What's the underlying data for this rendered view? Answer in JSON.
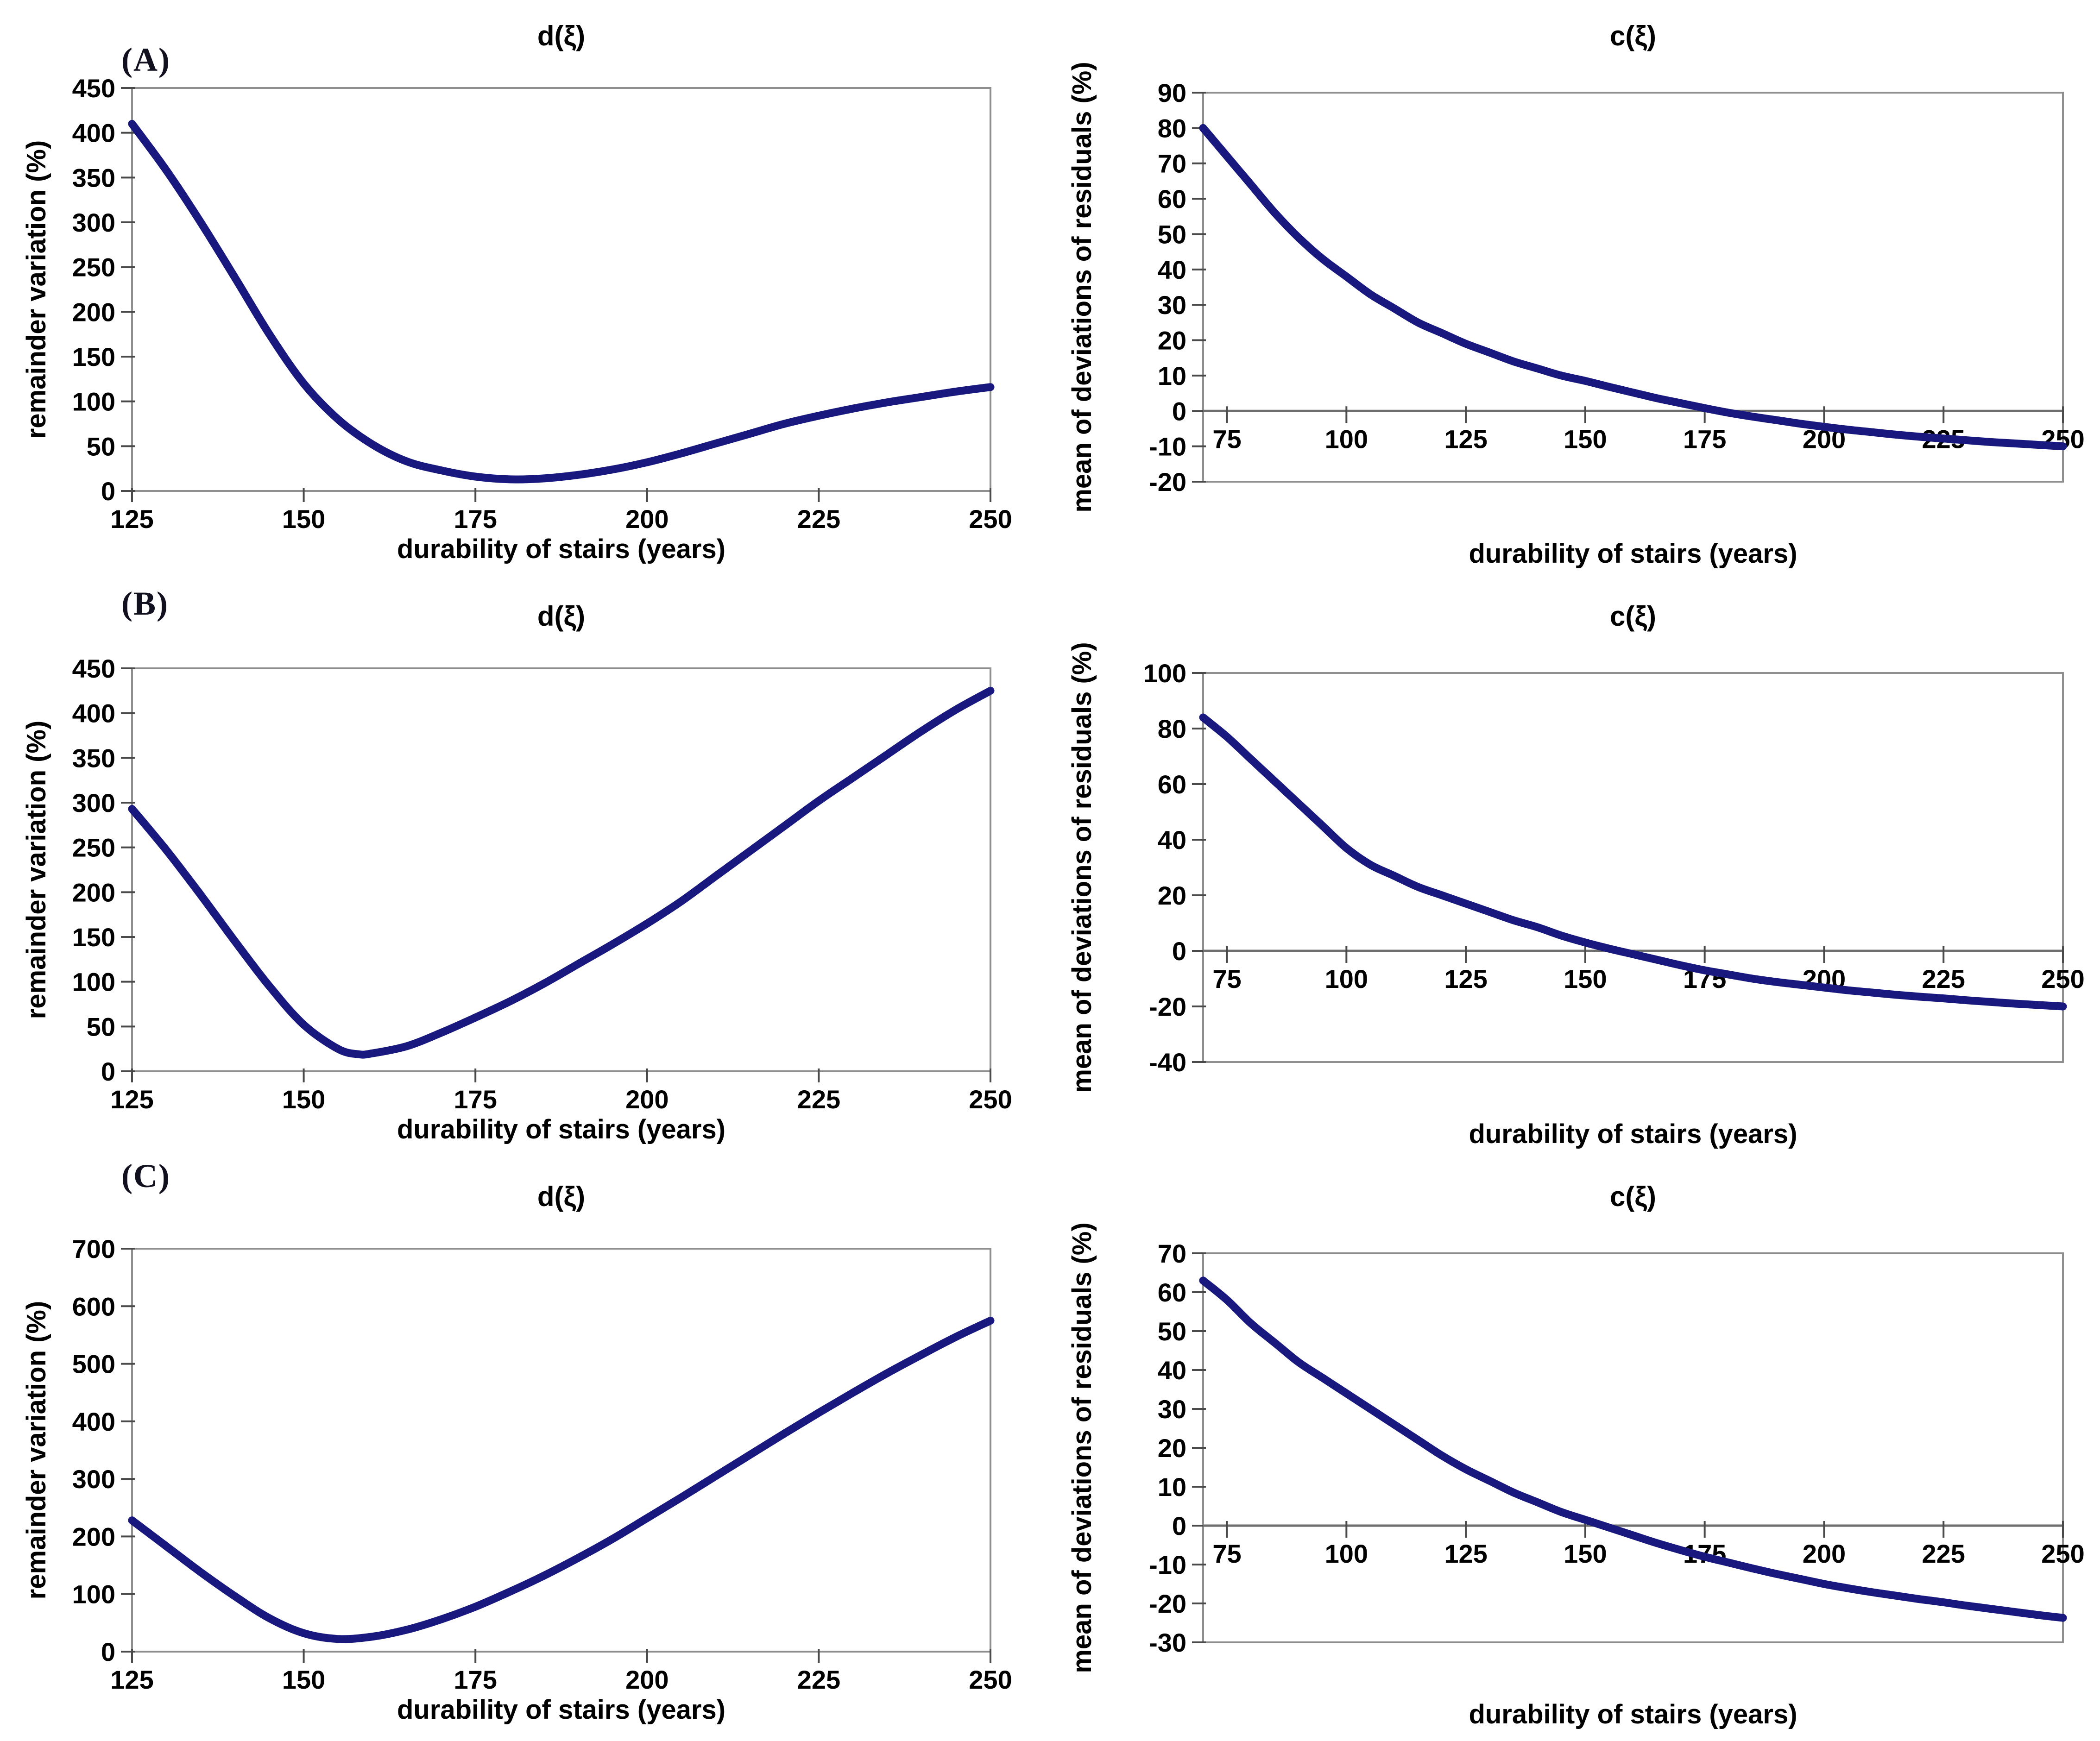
{
  "figure": {
    "background": "#ffffff",
    "line_color": "#18187f",
    "frame_color": "#8f8f8f",
    "zero_line_color": "#6e6e6e",
    "tick_color": "#4a4a4a",
    "text_color": "#000000",
    "panel_label_color": "#10101e"
  },
  "chart_data": [
    {
      "id": "a-d-xi",
      "panel_label": "(A)",
      "type": "line",
      "title": "d(ξ)",
      "xlabel": "durability of stairs (years)",
      "ylabel": "remainder variation (%)",
      "xlim": [
        125,
        250
      ],
      "ylim": [
        0,
        450
      ],
      "xticks": [
        125,
        150,
        175,
        200,
        225,
        250
      ],
      "yticks": [
        0,
        50,
        100,
        150,
        200,
        250,
        300,
        350,
        400,
        450
      ],
      "x_axis_mode": "bottom",
      "grid": false,
      "legend": null,
      "points": [
        [
          125,
          410
        ],
        [
          130,
          358
        ],
        [
          135,
          300
        ],
        [
          140,
          238
        ],
        [
          145,
          175
        ],
        [
          150,
          120
        ],
        [
          155,
          80
        ],
        [
          160,
          52
        ],
        [
          165,
          33
        ],
        [
          170,
          23
        ],
        [
          175,
          16
        ],
        [
          180,
          13
        ],
        [
          185,
          14
        ],
        [
          190,
          18
        ],
        [
          195,
          24
        ],
        [
          200,
          32
        ],
        [
          205,
          42
        ],
        [
          210,
          53
        ],
        [
          215,
          64
        ],
        [
          220,
          75
        ],
        [
          225,
          84
        ],
        [
          230,
          92
        ],
        [
          235,
          99
        ],
        [
          240,
          105
        ],
        [
          245,
          111
        ],
        [
          250,
          116
        ]
      ]
    },
    {
      "id": "a-c-xi",
      "panel_label": "",
      "type": "line",
      "title": "c(ξ)",
      "xlabel": "durability of stairs (years)",
      "ylabel": "mean of deviations of residuals (%)",
      "xlim": [
        70,
        250
      ],
      "ylim": [
        -20,
        90
      ],
      "xticks": [
        75,
        100,
        125,
        150,
        175,
        200,
        225,
        250
      ],
      "yticks": [
        -20,
        -10,
        0,
        10,
        20,
        30,
        40,
        50,
        60,
        70,
        80,
        90
      ],
      "x_axis_mode": "zero",
      "grid": false,
      "legend": null,
      "points": [
        [
          70,
          80
        ],
        [
          75,
          72
        ],
        [
          80,
          64
        ],
        [
          85,
          56
        ],
        [
          90,
          49
        ],
        [
          95,
          43
        ],
        [
          100,
          38
        ],
        [
          105,
          33
        ],
        [
          110,
          29
        ],
        [
          115,
          25
        ],
        [
          120,
          22
        ],
        [
          125,
          19
        ],
        [
          130,
          16.5
        ],
        [
          135,
          14
        ],
        [
          140,
          12
        ],
        [
          145,
          10
        ],
        [
          150,
          8.5
        ],
        [
          155,
          6.8
        ],
        [
          160,
          5.2
        ],
        [
          165,
          3.6
        ],
        [
          170,
          2.2
        ],
        [
          175,
          0.8
        ],
        [
          180,
          -0.5
        ],
        [
          185,
          -1.6
        ],
        [
          190,
          -2.6
        ],
        [
          195,
          -3.6
        ],
        [
          200,
          -4.5
        ],
        [
          205,
          -5.3
        ],
        [
          210,
          -6
        ],
        [
          215,
          -6.7
        ],
        [
          220,
          -7.3
        ],
        [
          225,
          -7.8
        ],
        [
          230,
          -8.3
        ],
        [
          235,
          -8.8
        ],
        [
          240,
          -9.2
        ],
        [
          245,
          -9.6
        ],
        [
          250,
          -10
        ]
      ]
    },
    {
      "id": "b-d-xi",
      "panel_label": "(B)",
      "type": "line",
      "title": "d(ξ)",
      "xlabel": "durability of stairs (years)",
      "ylabel": "remainder variation (%)",
      "xlim": [
        125,
        250
      ],
      "ylim": [
        0,
        450
      ],
      "xticks": [
        125,
        150,
        175,
        200,
        225,
        250
      ],
      "yticks": [
        0,
        50,
        100,
        150,
        200,
        250,
        300,
        350,
        400,
        450
      ],
      "x_axis_mode": "bottom",
      "grid": false,
      "legend": null,
      "points": [
        [
          125,
          293
        ],
        [
          130,
          247
        ],
        [
          135,
          197
        ],
        [
          140,
          145
        ],
        [
          145,
          95
        ],
        [
          150,
          52
        ],
        [
          155,
          25
        ],
        [
          158,
          19
        ],
        [
          160,
          20
        ],
        [
          165,
          28
        ],
        [
          170,
          43
        ],
        [
          175,
          60
        ],
        [
          180,
          78
        ],
        [
          185,
          98
        ],
        [
          190,
          120
        ],
        [
          195,
          142
        ],
        [
          200,
          165
        ],
        [
          205,
          190
        ],
        [
          210,
          218
        ],
        [
          215,
          246
        ],
        [
          220,
          274
        ],
        [
          225,
          302
        ],
        [
          230,
          328
        ],
        [
          235,
          354
        ],
        [
          240,
          380
        ],
        [
          245,
          404
        ],
        [
          250,
          425
        ]
      ]
    },
    {
      "id": "b-c-xi",
      "panel_label": "",
      "type": "line",
      "title": "c(ξ)",
      "xlabel": "durability of stairs (years)",
      "ylabel": "mean of deviations of residuals (%)",
      "xlim": [
        70,
        250
      ],
      "ylim": [
        -40,
        100
      ],
      "xticks": [
        75,
        100,
        125,
        150,
        175,
        200,
        225,
        250
      ],
      "yticks": [
        -40,
        -20,
        0,
        20,
        40,
        60,
        80,
        100
      ],
      "x_axis_mode": "zero",
      "grid": false,
      "legend": null,
      "points": [
        [
          70,
          84
        ],
        [
          75,
          77
        ],
        [
          80,
          69
        ],
        [
          85,
          61
        ],
        [
          90,
          53
        ],
        [
          95,
          45
        ],
        [
          100,
          37
        ],
        [
          105,
          31
        ],
        [
          110,
          27
        ],
        [
          115,
          23
        ],
        [
          120,
          20
        ],
        [
          125,
          17
        ],
        [
          130,
          14
        ],
        [
          135,
          11
        ],
        [
          140,
          8.5
        ],
        [
          145,
          5.5
        ],
        [
          150,
          3
        ],
        [
          155,
          0.8
        ],
        [
          160,
          -1.2
        ],
        [
          165,
          -3.2
        ],
        [
          170,
          -5.2
        ],
        [
          175,
          -7
        ],
        [
          180,
          -8.5
        ],
        [
          185,
          -10
        ],
        [
          190,
          -11.2
        ],
        [
          195,
          -12.2
        ],
        [
          200,
          -13.2
        ],
        [
          205,
          -14.2
        ],
        [
          210,
          -15
        ],
        [
          215,
          -15.8
        ],
        [
          220,
          -16.5
        ],
        [
          225,
          -17.1
        ],
        [
          230,
          -17.8
        ],
        [
          235,
          -18.4
        ],
        [
          240,
          -19
        ],
        [
          245,
          -19.5
        ],
        [
          250,
          -20
        ]
      ]
    },
    {
      "id": "c-d-xi",
      "panel_label": "(C)",
      "type": "line",
      "title": "d(ξ)",
      "xlabel": "durability of stairs (years)",
      "ylabel": "remainder variation (%)",
      "xlim": [
        125,
        250
      ],
      "ylim": [
        0,
        700
      ],
      "xticks": [
        125,
        150,
        175,
        200,
        225,
        250
      ],
      "yticks": [
        0,
        100,
        200,
        300,
        400,
        500,
        600,
        700
      ],
      "x_axis_mode": "bottom",
      "grid": false,
      "legend": null,
      "points": [
        [
          125,
          228
        ],
        [
          130,
          183
        ],
        [
          135,
          138
        ],
        [
          140,
          96
        ],
        [
          145,
          58
        ],
        [
          150,
          32
        ],
        [
          155,
          22
        ],
        [
          160,
          26
        ],
        [
          165,
          38
        ],
        [
          170,
          56
        ],
        [
          175,
          78
        ],
        [
          180,
          104
        ],
        [
          185,
          132
        ],
        [
          190,
          163
        ],
        [
          195,
          196
        ],
        [
          200,
          232
        ],
        [
          205,
          268
        ],
        [
          210,
          305
        ],
        [
          215,
          342
        ],
        [
          220,
          379
        ],
        [
          225,
          415
        ],
        [
          230,
          450
        ],
        [
          235,
          484
        ],
        [
          240,
          516
        ],
        [
          245,
          547
        ],
        [
          250,
          575
        ]
      ]
    },
    {
      "id": "c-c-xi",
      "panel_label": "",
      "type": "line",
      "title": "c(ξ)",
      "xlabel": "durability of stairs (years)",
      "ylabel": "mean of deviations of residuals (%)",
      "xlim": [
        70,
        250
      ],
      "ylim": [
        -30,
        70
      ],
      "xticks": [
        75,
        100,
        125,
        150,
        175,
        200,
        225,
        250
      ],
      "yticks": [
        -30,
        -20,
        -10,
        0,
        10,
        20,
        30,
        40,
        50,
        60,
        70
      ],
      "x_axis_mode": "zero",
      "grid": false,
      "legend": null,
      "points": [
        [
          70,
          63
        ],
        [
          75,
          58
        ],
        [
          80,
          52
        ],
        [
          85,
          47
        ],
        [
          90,
          42
        ],
        [
          95,
          38
        ],
        [
          100,
          34
        ],
        [
          105,
          30
        ],
        [
          110,
          26
        ],
        [
          115,
          22
        ],
        [
          120,
          18
        ],
        [
          125,
          14.5
        ],
        [
          130,
          11.5
        ],
        [
          135,
          8.5
        ],
        [
          140,
          6
        ],
        [
          145,
          3.5
        ],
        [
          150,
          1.5
        ],
        [
          155,
          -0.5
        ],
        [
          160,
          -2.5
        ],
        [
          165,
          -4.5
        ],
        [
          170,
          -6.3
        ],
        [
          175,
          -8
        ],
        [
          180,
          -9.5
        ],
        [
          185,
          -11
        ],
        [
          190,
          -12.4
        ],
        [
          195,
          -13.7
        ],
        [
          200,
          -15
        ],
        [
          205,
          -16.1
        ],
        [
          210,
          -17.1
        ],
        [
          215,
          -18
        ],
        [
          220,
          -18.9
        ],
        [
          225,
          -19.7
        ],
        [
          230,
          -20.6
        ],
        [
          235,
          -21.4
        ],
        [
          240,
          -22.2
        ],
        [
          245,
          -23
        ],
        [
          250,
          -23.7
        ]
      ]
    }
  ]
}
